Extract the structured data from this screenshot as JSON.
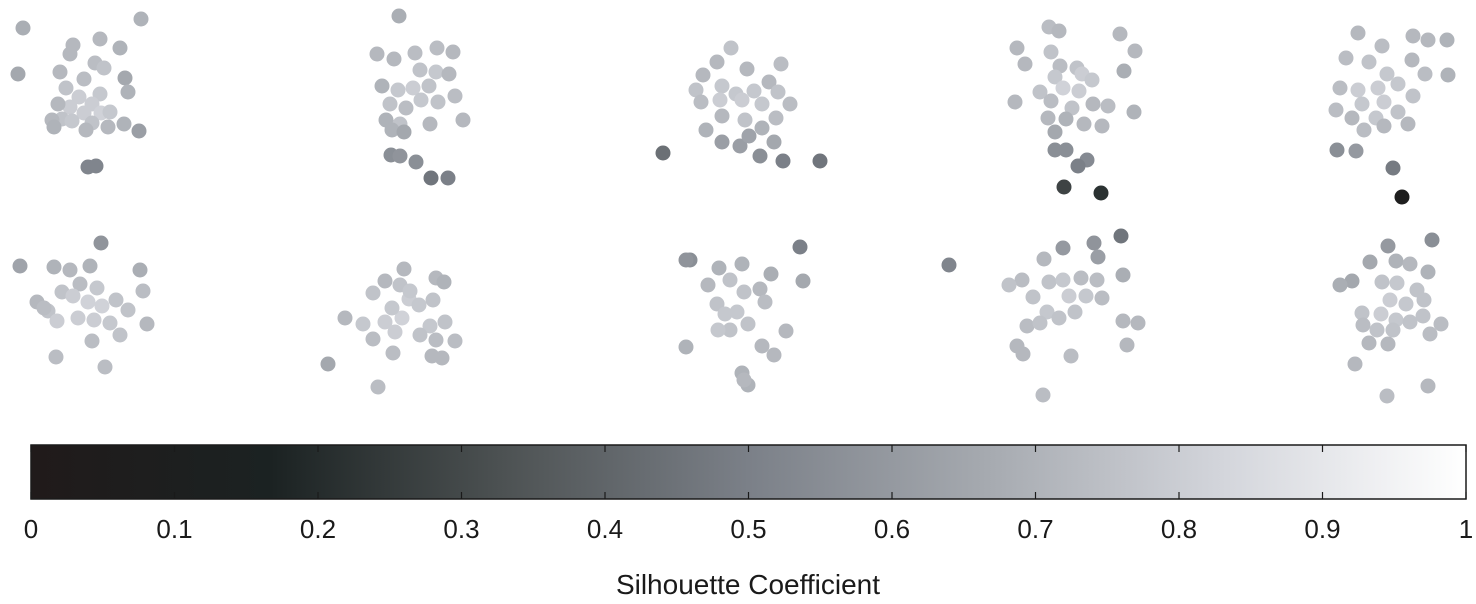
{
  "chart_data": {
    "type": "scatter",
    "colorbar": {
      "label": "Silhouette Coefficient",
      "min": 0,
      "max": 1,
      "ticks": [
        0,
        0.1,
        0.2,
        0.3,
        0.4,
        0.5,
        0.6,
        0.7,
        0.8,
        0.9,
        1
      ],
      "tick_labels": [
        "0",
        "0.1",
        "0.2",
        "0.3",
        "0.4",
        "0.5",
        "0.6",
        "0.7",
        "0.8",
        "0.9",
        "1"
      ],
      "colormap": [
        "#201a1a",
        "#1b2222",
        "#4e5354",
        "#7b8088",
        "#a6aab0",
        "#d4d6dc",
        "#ffffff"
      ]
    },
    "points": [
      [
        23,
        28,
        0.68
      ],
      [
        141,
        19,
        0.7
      ],
      [
        18,
        74,
        0.66
      ],
      [
        100,
        39,
        0.72
      ],
      [
        120,
        48,
        0.7
      ],
      [
        73,
        45,
        0.72
      ],
      [
        70,
        54,
        0.72
      ],
      [
        95,
        63,
        0.74
      ],
      [
        104,
        68,
        0.76
      ],
      [
        60,
        72,
        0.72
      ],
      [
        125,
        78,
        0.66
      ],
      [
        84,
        79,
        0.74
      ],
      [
        128,
        92,
        0.7
      ],
      [
        66,
        88,
        0.76
      ],
      [
        79,
        97,
        0.8
      ],
      [
        100,
        94,
        0.78
      ],
      [
        92,
        104,
        0.8
      ],
      [
        70,
        107,
        0.8
      ],
      [
        58,
        104,
        0.72
      ],
      [
        84,
        113,
        0.8
      ],
      [
        101,
        113,
        0.82
      ],
      [
        110,
        112,
        0.78
      ],
      [
        62,
        119,
        0.76
      ],
      [
        52,
        120,
        0.72
      ],
      [
        72,
        121,
        0.78
      ],
      [
        92,
        123,
        0.76
      ],
      [
        124,
        124,
        0.7
      ],
      [
        139,
        131,
        0.62
      ],
      [
        54,
        127,
        0.7
      ],
      [
        108,
        127,
        0.72
      ],
      [
        86,
        130,
        0.72
      ],
      [
        88,
        167,
        0.52
      ],
      [
        96,
        166,
        0.52
      ],
      [
        399,
        16,
        0.68
      ],
      [
        377,
        54,
        0.72
      ],
      [
        394,
        59,
        0.72
      ],
      [
        415,
        53,
        0.74
      ],
      [
        437,
        48,
        0.74
      ],
      [
        453,
        52,
        0.72
      ],
      [
        420,
        70,
        0.76
      ],
      [
        436,
        72,
        0.78
      ],
      [
        449,
        74,
        0.72
      ],
      [
        382,
        86,
        0.7
      ],
      [
        398,
        90,
        0.78
      ],
      [
        413,
        88,
        0.8
      ],
      [
        429,
        86,
        0.76
      ],
      [
        390,
        104,
        0.76
      ],
      [
        406,
        108,
        0.74
      ],
      [
        421,
        100,
        0.78
      ],
      [
        438,
        102,
        0.76
      ],
      [
        455,
        96,
        0.74
      ],
      [
        386,
        120,
        0.7
      ],
      [
        400,
        124,
        0.76
      ],
      [
        430,
        124,
        0.72
      ],
      [
        463,
        120,
        0.72
      ],
      [
        392,
        130,
        0.7
      ],
      [
        404,
        132,
        0.66
      ],
      [
        391,
        155,
        0.56
      ],
      [
        400,
        156,
        0.58
      ],
      [
        416,
        162,
        0.56
      ],
      [
        431,
        178,
        0.46
      ],
      [
        448,
        178,
        0.5
      ],
      [
        731,
        48,
        0.76
      ],
      [
        717,
        62,
        0.72
      ],
      [
        747,
        69,
        0.72
      ],
      [
        781,
        64,
        0.74
      ],
      [
        703,
        75,
        0.72
      ],
      [
        769,
        82,
        0.72
      ],
      [
        722,
        86,
        0.78
      ],
      [
        696,
        90,
        0.76
      ],
      [
        736,
        94,
        0.78
      ],
      [
        754,
        91,
        0.78
      ],
      [
        778,
        92,
        0.76
      ],
      [
        701,
        102,
        0.74
      ],
      [
        720,
        100,
        0.8
      ],
      [
        742,
        100,
        0.8
      ],
      [
        762,
        104,
        0.78
      ],
      [
        790,
        104,
        0.74
      ],
      [
        722,
        116,
        0.72
      ],
      [
        745,
        120,
        0.76
      ],
      [
        776,
        118,
        0.74
      ],
      [
        706,
        130,
        0.7
      ],
      [
        762,
        128,
        0.7
      ],
      [
        722,
        142,
        0.62
      ],
      [
        740,
        146,
        0.62
      ],
      [
        774,
        142,
        0.66
      ],
      [
        749,
        136,
        0.64
      ],
      [
        760,
        156,
        0.56
      ],
      [
        783,
        161,
        0.5
      ],
      [
        820,
        161,
        0.46
      ],
      [
        663,
        153,
        0.44
      ],
      [
        1049,
        27,
        0.74
      ],
      [
        1059,
        31,
        0.72
      ],
      [
        1120,
        34,
        0.72
      ],
      [
        1017,
        48,
        0.72
      ],
      [
        1051,
        52,
        0.76
      ],
      [
        1135,
        51,
        0.72
      ],
      [
        1025,
        64,
        0.72
      ],
      [
        1060,
        66,
        0.74
      ],
      [
        1077,
        68,
        0.76
      ],
      [
        1124,
        71,
        0.68
      ],
      [
        1055,
        77,
        0.78
      ],
      [
        1082,
        74,
        0.8
      ],
      [
        1092,
        80,
        0.78
      ],
      [
        1040,
        92,
        0.76
      ],
      [
        1063,
        88,
        0.82
      ],
      [
        1079,
        91,
        0.8
      ],
      [
        1015,
        102,
        0.72
      ],
      [
        1051,
        101,
        0.74
      ],
      [
        1072,
        108,
        0.76
      ],
      [
        1093,
        104,
        0.72
      ],
      [
        1108,
        106,
        0.74
      ],
      [
        1134,
        112,
        0.7
      ],
      [
        1048,
        118,
        0.72
      ],
      [
        1066,
        119,
        0.7
      ],
      [
        1084,
        124,
        0.72
      ],
      [
        1102,
        126,
        0.72
      ],
      [
        1055,
        132,
        0.66
      ],
      [
        1055,
        150,
        0.56
      ],
      [
        1066,
        150,
        0.56
      ],
      [
        1087,
        160,
        0.54
      ],
      [
        1078,
        166,
        0.5
      ],
      [
        1064,
        187,
        0.28
      ],
      [
        1101,
        193,
        0.22
      ],
      [
        1358,
        33,
        0.72
      ],
      [
        1382,
        46,
        0.74
      ],
      [
        1413,
        36,
        0.72
      ],
      [
        1428,
        40,
        0.72
      ],
      [
        1447,
        40,
        0.7
      ],
      [
        1346,
        58,
        0.74
      ],
      [
        1369,
        62,
        0.76
      ],
      [
        1387,
        74,
        0.78
      ],
      [
        1412,
        60,
        0.72
      ],
      [
        1425,
        74,
        0.74
      ],
      [
        1448,
        75,
        0.7
      ],
      [
        1340,
        88,
        0.74
      ],
      [
        1358,
        90,
        0.8
      ],
      [
        1378,
        88,
        0.8
      ],
      [
        1398,
        84,
        0.78
      ],
      [
        1413,
        96,
        0.76
      ],
      [
        1362,
        104,
        0.78
      ],
      [
        1384,
        102,
        0.8
      ],
      [
        1336,
        110,
        0.74
      ],
      [
        1352,
        118,
        0.72
      ],
      [
        1376,
        118,
        0.78
      ],
      [
        1398,
        112,
        0.76
      ],
      [
        1364,
        130,
        0.74
      ],
      [
        1384,
        126,
        0.72
      ],
      [
        1408,
        124,
        0.72
      ],
      [
        1337,
        150,
        0.56
      ],
      [
        1356,
        151,
        0.6
      ],
      [
        1393,
        168,
        0.48
      ],
      [
        1402,
        197,
        0.08
      ],
      [
        101,
        243,
        0.58
      ],
      [
        20,
        266,
        0.64
      ],
      [
        54,
        267,
        0.7
      ],
      [
        70,
        270,
        0.72
      ],
      [
        90,
        266,
        0.7
      ],
      [
        140,
        270,
        0.68
      ],
      [
        37,
        302,
        0.72
      ],
      [
        62,
        292,
        0.76
      ],
      [
        80,
        284,
        0.74
      ],
      [
        97,
        288,
        0.78
      ],
      [
        143,
        291,
        0.74
      ],
      [
        48,
        311,
        0.76
      ],
      [
        73,
        296,
        0.8
      ],
      [
        88,
        302,
        0.82
      ],
      [
        102,
        306,
        0.82
      ],
      [
        116,
        300,
        0.76
      ],
      [
        128,
        310,
        0.76
      ],
      [
        57,
        321,
        0.8
      ],
      [
        78,
        318,
        0.8
      ],
      [
        94,
        320,
        0.8
      ],
      [
        110,
        323,
        0.78
      ],
      [
        147,
        324,
        0.72
      ],
      [
        120,
        335,
        0.76
      ],
      [
        92,
        341,
        0.74
      ],
      [
        56,
        357,
        0.74
      ],
      [
        105,
        367,
        0.74
      ],
      [
        44,
        308,
        0.74
      ],
      [
        404,
        269,
        0.72
      ],
      [
        373,
        293,
        0.76
      ],
      [
        385,
        281,
        0.72
      ],
      [
        400,
        285,
        0.76
      ],
      [
        436,
        278,
        0.72
      ],
      [
        444,
        282,
        0.7
      ],
      [
        409,
        299,
        0.8
      ],
      [
        419,
        305,
        0.78
      ],
      [
        433,
        300,
        0.76
      ],
      [
        345,
        318,
        0.72
      ],
      [
        363,
        324,
        0.78
      ],
      [
        385,
        322,
        0.8
      ],
      [
        402,
        318,
        0.82
      ],
      [
        430,
        326,
        0.78
      ],
      [
        445,
        322,
        0.76
      ],
      [
        373,
        339,
        0.74
      ],
      [
        395,
        332,
        0.8
      ],
      [
        420,
        335,
        0.76
      ],
      [
        436,
        340,
        0.74
      ],
      [
        455,
        341,
        0.74
      ],
      [
        393,
        353,
        0.74
      ],
      [
        432,
        356,
        0.72
      ],
      [
        442,
        358,
        0.72
      ],
      [
        328,
        364,
        0.66
      ],
      [
        378,
        387,
        0.74
      ],
      [
        410,
        291,
        0.78
      ],
      [
        392,
        308,
        0.78
      ],
      [
        690,
        260,
        0.56
      ],
      [
        686,
        260,
        0.58
      ],
      [
        800,
        247,
        0.5
      ],
      [
        719,
        268,
        0.7
      ],
      [
        742,
        264,
        0.7
      ],
      [
        771,
        274,
        0.68
      ],
      [
        708,
        285,
        0.72
      ],
      [
        730,
        280,
        0.76
      ],
      [
        744,
        292,
        0.76
      ],
      [
        760,
        289,
        0.72
      ],
      [
        803,
        281,
        0.66
      ],
      [
        717,
        304,
        0.76
      ],
      [
        737,
        312,
        0.78
      ],
      [
        765,
        302,
        0.74
      ],
      [
        730,
        330,
        0.76
      ],
      [
        748,
        324,
        0.76
      ],
      [
        718,
        330,
        0.78
      ],
      [
        786,
        331,
        0.72
      ],
      [
        762,
        346,
        0.72
      ],
      [
        686,
        347,
        0.7
      ],
      [
        774,
        355,
        0.72
      ],
      [
        742,
        373,
        0.7
      ],
      [
        748,
        385,
        0.7
      ],
      [
        744,
        380,
        0.72
      ],
      [
        725,
        314,
        0.78
      ],
      [
        1121,
        236,
        0.46
      ],
      [
        1094,
        243,
        0.58
      ],
      [
        1063,
        248,
        0.6
      ],
      [
        1098,
        257,
        0.62
      ],
      [
        949,
        265,
        0.52
      ],
      [
        1044,
        259,
        0.72
      ],
      [
        1123,
        275,
        0.68
      ],
      [
        1022,
        280,
        0.74
      ],
      [
        1009,
        285,
        0.76
      ],
      [
        1049,
        282,
        0.76
      ],
      [
        1063,
        280,
        0.78
      ],
      [
        1081,
        278,
        0.74
      ],
      [
        1097,
        280,
        0.74
      ],
      [
        1033,
        297,
        0.76
      ],
      [
        1069,
        296,
        0.8
      ],
      [
        1086,
        296,
        0.78
      ],
      [
        1102,
        298,
        0.74
      ],
      [
        1047,
        312,
        0.78
      ],
      [
        1059,
        318,
        0.76
      ],
      [
        1075,
        312,
        0.76
      ],
      [
        1027,
        326,
        0.74
      ],
      [
        1123,
        321,
        0.72
      ],
      [
        1138,
        323,
        0.72
      ],
      [
        1017,
        346,
        0.72
      ],
      [
        1127,
        345,
        0.72
      ],
      [
        1023,
        354,
        0.72
      ],
      [
        1071,
        356,
        0.74
      ],
      [
        1043,
        395,
        0.74
      ],
      [
        1040,
        323,
        0.76
      ],
      [
        1432,
        240,
        0.56
      ],
      [
        1388,
        246,
        0.6
      ],
      [
        1370,
        262,
        0.66
      ],
      [
        1396,
        261,
        0.7
      ],
      [
        1410,
        264,
        0.72
      ],
      [
        1428,
        272,
        0.7
      ],
      [
        1352,
        281,
        0.66
      ],
      [
        1340,
        285,
        0.68
      ],
      [
        1382,
        282,
        0.76
      ],
      [
        1397,
        283,
        0.78
      ],
      [
        1417,
        290,
        0.76
      ],
      [
        1390,
        300,
        0.8
      ],
      [
        1406,
        304,
        0.78
      ],
      [
        1424,
        300,
        0.76
      ],
      [
        1362,
        313,
        0.76
      ],
      [
        1381,
        314,
        0.8
      ],
      [
        1396,
        320,
        0.78
      ],
      [
        1423,
        316,
        0.76
      ],
      [
        1441,
        324,
        0.74
      ],
      [
        1363,
        325,
        0.74
      ],
      [
        1410,
        322,
        0.76
      ],
      [
        1377,
        330,
        0.76
      ],
      [
        1393,
        330,
        0.76
      ],
      [
        1430,
        334,
        0.74
      ],
      [
        1369,
        343,
        0.72
      ],
      [
        1388,
        344,
        0.72
      ],
      [
        1355,
        364,
        0.72
      ],
      [
        1428,
        386,
        0.72
      ],
      [
        1387,
        396,
        0.74
      ]
    ]
  }
}
